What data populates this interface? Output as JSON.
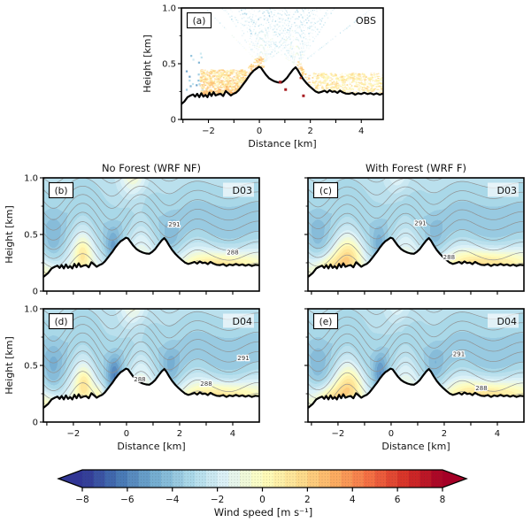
{
  "figure": {
    "bg": "#ffffff"
  },
  "chart_data": {
    "type": "heatmap",
    "description": "Vertical cross sections of along-valley wind speed over double-peak terrain; lidar observations (a) and WRF simulations without/with forest for domains D03 and D04 (b-e), with potential temperature contours (K).",
    "suptitles": {
      "left": "No Forest (WRF NF)",
      "right": "With Forest (WRF F)"
    },
    "axes": {
      "xlabel": "Distance [km]",
      "ylabel": "Height [km]",
      "ylim": [
        0,
        1.0
      ],
      "xticks_labeled": [
        -2,
        0,
        2,
        4
      ],
      "xtick_labels": [
        "−2",
        "0",
        "2",
        "4"
      ],
      "xticks_all": [
        -3,
        -2,
        -1,
        0,
        1,
        2,
        3,
        4
      ],
      "yticks_major": [
        0,
        0.5,
        1.0
      ],
      "ytick_labels": [
        "0",
        "0.5",
        "1.0"
      ],
      "yticks_minor": [
        0.25,
        0.75
      ]
    },
    "terrain": [
      [
        -3.13,
        0.125
      ],
      [
        -2.95,
        0.16
      ],
      [
        -2.82,
        0.2
      ],
      [
        -2.7,
        0.215
      ],
      [
        -2.6,
        0.225
      ],
      [
        -2.52,
        0.205
      ],
      [
        -2.44,
        0.23
      ],
      [
        -2.36,
        0.2
      ],
      [
        -2.28,
        0.235
      ],
      [
        -2.2,
        0.205
      ],
      [
        -2.12,
        0.22
      ],
      [
        -2.04,
        0.2
      ],
      [
        -1.96,
        0.24
      ],
      [
        -1.88,
        0.21
      ],
      [
        -1.8,
        0.245
      ],
      [
        -1.72,
        0.215
      ],
      [
        -1.62,
        0.225
      ],
      [
        -1.52,
        0.23
      ],
      [
        -1.42,
        0.21
      ],
      [
        -1.32,
        0.255
      ],
      [
        -1.22,
        0.235
      ],
      [
        -1.12,
        0.215
      ],
      [
        -1.02,
        0.23
      ],
      [
        -0.92,
        0.24
      ],
      [
        -0.82,
        0.26
      ],
      [
        -0.72,
        0.29
      ],
      [
        -0.62,
        0.32
      ],
      [
        -0.52,
        0.35
      ],
      [
        -0.42,
        0.385
      ],
      [
        -0.32,
        0.415
      ],
      [
        -0.22,
        0.44
      ],
      [
        -0.12,
        0.455
      ],
      [
        -0.02,
        0.472
      ],
      [
        0.06,
        0.465
      ],
      [
        0.16,
        0.432
      ],
      [
        0.26,
        0.4
      ],
      [
        0.38,
        0.37
      ],
      [
        0.5,
        0.352
      ],
      [
        0.62,
        0.34
      ],
      [
        0.74,
        0.332
      ],
      [
        0.86,
        0.33
      ],
      [
        0.96,
        0.345
      ],
      [
        1.08,
        0.372
      ],
      [
        1.2,
        0.41
      ],
      [
        1.32,
        0.447
      ],
      [
        1.42,
        0.468
      ],
      [
        1.5,
        0.445
      ],
      [
        1.6,
        0.405
      ],
      [
        1.72,
        0.362
      ],
      [
        1.84,
        0.328
      ],
      [
        1.96,
        0.3
      ],
      [
        2.08,
        0.275
      ],
      [
        2.2,
        0.252
      ],
      [
        2.32,
        0.24
      ],
      [
        2.44,
        0.248
      ],
      [
        2.56,
        0.258
      ],
      [
        2.66,
        0.243
      ],
      [
        2.76,
        0.262
      ],
      [
        2.86,
        0.248
      ],
      [
        2.96,
        0.252
      ],
      [
        3.06,
        0.238
      ],
      [
        3.16,
        0.258
      ],
      [
        3.28,
        0.242
      ],
      [
        3.4,
        0.232
      ],
      [
        3.52,
        0.23
      ],
      [
        3.64,
        0.238
      ],
      [
        3.76,
        0.222
      ],
      [
        3.88,
        0.235
      ],
      [
        4.0,
        0.228
      ],
      [
        4.12,
        0.24
      ],
      [
        4.24,
        0.228
      ],
      [
        4.36,
        0.236
      ],
      [
        4.48,
        0.224
      ],
      [
        4.6,
        0.234
      ],
      [
        4.72,
        0.222
      ],
      [
        4.85,
        0.232
      ],
      [
        5.0,
        0.228
      ]
    ],
    "wind_profile": [
      [
        -0.2,
        -0.4
      ],
      [
        0.15,
        -0.9
      ],
      [
        0.3,
        -1.8
      ],
      [
        0.42,
        -2.6
      ],
      [
        0.55,
        -3.2
      ],
      [
        0.7,
        -3.4
      ],
      [
        0.85,
        -3.1
      ],
      [
        1.0,
        -2.9
      ],
      [
        1.3,
        -2.7
      ]
    ],
    "wave": {
      "lambda_km": 2.2,
      "crest_x": 0.55
    },
    "theta_contours": {
      "base_K": 284.6,
      "lapse_K_per_km": 11.1,
      "levels": [
        285,
        286,
        287,
        288,
        289,
        290,
        291,
        292,
        293,
        294,
        295,
        296
      ],
      "color": "#8f8f8f"
    },
    "panels": [
      {
        "id": "a",
        "label": "(a)",
        "tag": "OBS",
        "kind": "obs"
      },
      {
        "id": "b",
        "label": "(b)",
        "tag": "D03",
        "kind": "model",
        "contour_labels": [
          {
            "text": "291",
            "x": 1.8,
            "z": 0.59
          },
          {
            "text": "288",
            "x": 4.0,
            "z": 0.345
          }
        ],
        "field": {
          "waveAmp": 0.165,
          "cores": [
            [
              -0.5,
              0.3,
              0.38,
              0.18,
              -2.0
            ],
            [
              1.65,
              0.35,
              0.5,
              0.2,
              -1.0
            ],
            [
              -2.75,
              0.4,
              0.5,
              0.25,
              -1.1
            ]
          ],
          "warm": [
            [
              -1.65,
              0.3,
              0.33,
              0.15,
              2.2
            ],
            [
              0.25,
              0.5,
              1.08,
              0.25,
              2.8
            ],
            [
              3.6,
              1.4,
              0.24,
              0.11,
              2.9
            ],
            [
              -2.95,
              0.4,
              0.18,
              0.1,
              1.2
            ]
          ]
        }
      },
      {
        "id": "c",
        "label": "(c)",
        "tag": "D03",
        "kind": "model",
        "contour_labels": [
          {
            "text": "291",
            "x": 1.1,
            "z": 0.6
          },
          {
            "text": "288",
            "x": 2.18,
            "z": 0.3
          }
        ],
        "field": {
          "waveAmp": 0.15,
          "cores": [
            [
              -0.45,
              0.3,
              0.4,
              0.18,
              -1.6
            ],
            [
              1.65,
              0.35,
              0.5,
              0.2,
              -0.9
            ],
            [
              -2.75,
              0.4,
              0.5,
              0.25,
              -1.0
            ]
          ],
          "warm": [
            [
              -1.6,
              0.5,
              0.32,
              0.16,
              2.5
            ],
            [
              0.25,
              0.5,
              1.08,
              0.25,
              1.5
            ],
            [
              3.6,
              1.5,
              0.25,
              0.12,
              3.2
            ],
            [
              -2.3,
              0.7,
              0.2,
              0.13,
              2.6
            ]
          ]
        }
      },
      {
        "id": "d",
        "label": "(d)",
        "tag": "D04",
        "kind": "model",
        "contour_labels": [
          {
            "text": "288",
            "x": 0.5,
            "z": 0.378
          },
          {
            "text": "291",
            "x": 4.4,
            "z": 0.565
          },
          {
            "text": "288",
            "x": 3.0,
            "z": 0.34
          }
        ],
        "field": {
          "waveAmp": 0.185,
          "cores": [
            [
              -0.45,
              0.28,
              0.4,
              0.18,
              -2.8
            ],
            [
              1.65,
              0.33,
              0.5,
              0.2,
              -1.3
            ],
            [
              -2.75,
              0.4,
              0.52,
              0.25,
              -1.3
            ]
          ],
          "warm": [
            [
              -1.6,
              0.3,
              0.33,
              0.15,
              2.4
            ],
            [
              0.25,
              0.5,
              1.08,
              0.25,
              2.4
            ],
            [
              3.6,
              1.4,
              0.24,
              0.11,
              2.9
            ],
            [
              -1.05,
              0.18,
              0.26,
              0.08,
              1.6
            ],
            [
              -2.95,
              0.4,
              0.18,
              0.1,
              1.4
            ]
          ]
        }
      },
      {
        "id": "e",
        "label": "(e)",
        "tag": "D04",
        "kind": "model",
        "contour_labels": [
          {
            "text": "291",
            "x": 2.55,
            "z": 0.6
          },
          {
            "text": "288",
            "x": 3.4,
            "z": 0.3
          }
        ],
        "field": {
          "waveAmp": 0.17,
          "cores": [
            [
              -0.4,
              0.28,
              0.42,
              0.18,
              -2.3
            ],
            [
              1.65,
              0.33,
              0.5,
              0.2,
              -1.1
            ],
            [
              -2.75,
              0.4,
              0.52,
              0.25,
              -1.1
            ]
          ],
          "warm": [
            [
              -1.55,
              0.5,
              0.33,
              0.16,
              2.5
            ],
            [
              0.25,
              0.5,
              1.08,
              0.25,
              1.4
            ],
            [
              3.6,
              1.5,
              0.25,
              0.12,
              3.2
            ],
            [
              -2.3,
              0.7,
              0.2,
              0.13,
              2.8
            ]
          ]
        }
      }
    ],
    "obs": {
      "beam_origins": [
        [
          0.05,
          0.49
        ],
        [
          1.45,
          0.48
        ]
      ],
      "beam_angles_deg": [
        10,
        170
      ],
      "beam_step_deg": 3.2,
      "left_markers": {
        "x0": -2.95,
        "x1": -2.2,
        "z0": 0.27,
        "z1": 0.6,
        "count": 16
      },
      "speckle_regions": [
        {
          "x0": -2.35,
          "x1": -0.55,
          "ztop": 0.45,
          "count": 750,
          "umin": 0.2,
          "umax": 3.2
        },
        {
          "x0": -2.3,
          "x1": -0.85,
          "zrel": 0.05,
          "count": 90,
          "umin": 1.8,
          "umax": 4.2
        },
        {
          "x0": -0.45,
          "x1": 0.12,
          "zrel": 0.1,
          "count": 70,
          "umin": 1.2,
          "umax": 3.6
        },
        {
          "x0": 1.45,
          "x1": 1.95,
          "zrel": 0.09,
          "count": 45,
          "umin": 0.8,
          "umax": 3.0
        },
        {
          "x0": 2.05,
          "x1": 4.8,
          "ztop": 0.42,
          "count": 520,
          "umin": 0.2,
          "umax": 2.2
        }
      ],
      "red_markers": [
        [
          0.82,
          0.335,
          "#a81d22",
          3.2
        ],
        [
          1.03,
          0.268,
          "#a81d22",
          3.0
        ],
        [
          1.73,
          0.212,
          "#a81d22",
          3.0
        ],
        [
          1.62,
          0.372,
          "#bb4430",
          2.4
        ]
      ]
    },
    "colorbar": {
      "label": "Wind speed [m s⁻¹]",
      "vmin": -8,
      "vmax": 8,
      "step": 0.5,
      "ticks": [
        -8,
        -6,
        -4,
        -2,
        0,
        2,
        4,
        6,
        8
      ],
      "tick_labels": [
        "−8",
        "−6",
        "−4",
        "−2",
        "0",
        "2",
        "4",
        "6",
        "8"
      ],
      "extend": "both",
      "cmap": [
        [
          0,
          "#313695"
        ],
        [
          0.1,
          "#4575b4"
        ],
        [
          0.2,
          "#74add1"
        ],
        [
          0.3,
          "#abd9e9"
        ],
        [
          0.4,
          "#e0f3f8"
        ],
        [
          0.5,
          "#ffffbf"
        ],
        [
          0.6,
          "#fee090"
        ],
        [
          0.7,
          "#fdae61"
        ],
        [
          0.8,
          "#f46d43"
        ],
        [
          0.9,
          "#d73027"
        ],
        [
          1,
          "#a50026"
        ]
      ]
    }
  }
}
